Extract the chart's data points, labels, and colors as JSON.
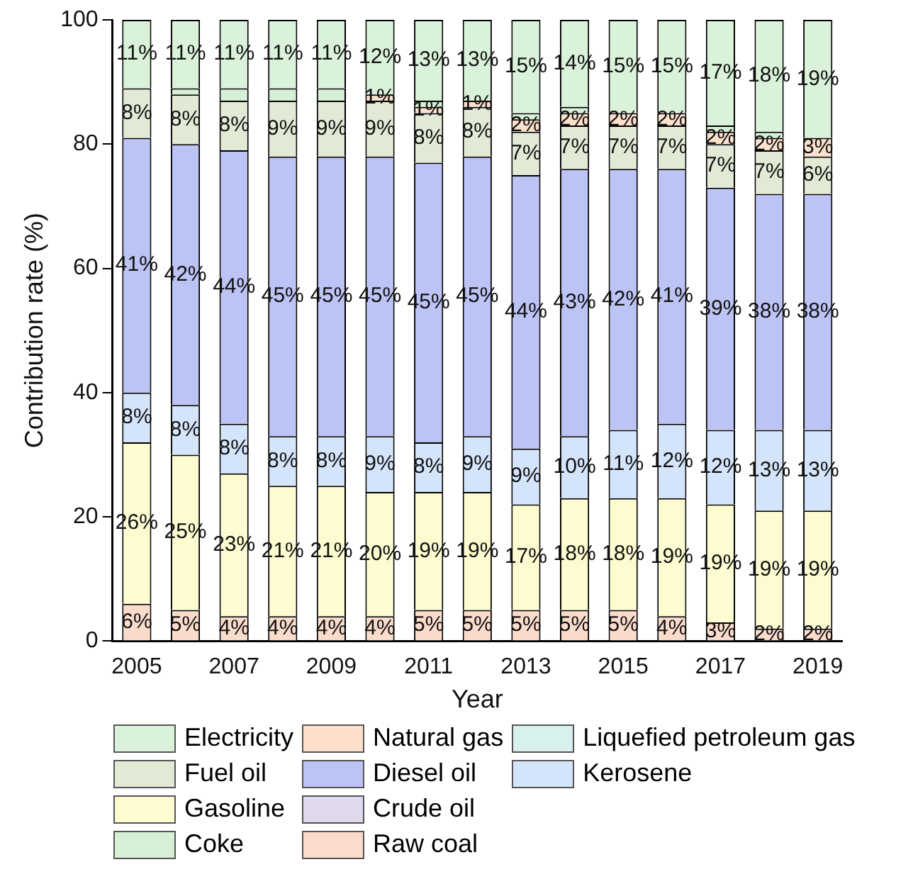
{
  "chart_data": {
    "type": "bar",
    "stacked": true,
    "xlabel": "Year",
    "ylabel": "Contribution rate (%)",
    "categories": [
      "2005",
      null,
      "2007",
      null,
      "2009",
      null,
      "2011",
      null,
      "2013",
      null,
      "2015",
      null,
      "2017",
      null,
      "2019"
    ],
    "ylim": [
      0,
      100
    ],
    "yticks": [
      0,
      20,
      40,
      60,
      80,
      100
    ],
    "grid": false,
    "legend": "bottom",
    "series": [
      {
        "name": "Raw coal",
        "color": "#fbdccc",
        "values": [
          6,
          5,
          4,
          4,
          4,
          4,
          5,
          5,
          5,
          5,
          5,
          4,
          3,
          2,
          2
        ],
        "value_labels": [
          "6%",
          "5%",
          "4%",
          "4%",
          "4%",
          "4%",
          "5%",
          "5%",
          "5%",
          "5%",
          "5%",
          "4%",
          "3%",
          "2%",
          "2%"
        ]
      },
      {
        "name": "Gasoline",
        "color": "#fdfbd0",
        "values": [
          26,
          25,
          23,
          21,
          21,
          20,
          19,
          19,
          17,
          18,
          18,
          19,
          19,
          19,
          19
        ],
        "value_labels": [
          "26%",
          "25%",
          "23%",
          "21%",
          "21%",
          "20%",
          "19%",
          "19%",
          "17%",
          "18%",
          "18%",
          "19%",
          "19%",
          "19%",
          "19%"
        ]
      },
      {
        "name": "Kerosene",
        "color": "#d4e4fa",
        "values": [
          8,
          8,
          8,
          8,
          8,
          9,
          8,
          9,
          9,
          10,
          11,
          12,
          12,
          13,
          13
        ],
        "value_labels": [
          "8%",
          "8%",
          "8%",
          "8%",
          "8%",
          "9%",
          "8%",
          "9%",
          "9%",
          "10%",
          "11%",
          "12%",
          "12%",
          "13%",
          "13%"
        ]
      },
      {
        "name": "Diesel oil",
        "color": "#bcc3f5",
        "values": [
          41,
          42,
          44,
          45,
          45,
          45,
          45,
          45,
          44,
          43,
          42,
          41,
          39,
          38,
          38
        ],
        "value_labels": [
          "41%",
          "42%",
          "44%",
          "45%",
          "45%",
          "45%",
          "45%",
          "45%",
          "44%",
          "43%",
          "42%",
          "41%",
          "39%",
          "38%",
          "38%"
        ]
      },
      {
        "name": "Fuel oil",
        "color": "#e2ead6",
        "values": [
          8,
          8,
          8,
          9,
          9,
          9,
          8,
          8,
          7,
          7,
          7,
          7,
          7,
          7,
          6
        ],
        "value_labels": [
          "8%",
          "8%",
          "8%",
          "9%",
          "9%",
          "9%",
          "8%",
          "8%",
          "7%",
          "7%",
          "7%",
          "7%",
          "7%",
          "7%",
          "6%"
        ]
      },
      {
        "name": "Natural gas",
        "color": "#fde0cc",
        "values": [
          null,
          null,
          null,
          null,
          null,
          1,
          1,
          1,
          2,
          2,
          2,
          2,
          2,
          2,
          3
        ],
        "value_labels": [
          null,
          null,
          null,
          null,
          null,
          "1%",
          "1%",
          "1%",
          "2%",
          "2%",
          "2%",
          "2%",
          "2%",
          "2%",
          "3%"
        ]
      },
      {
        "name": "Crude oil",
        "color": "#e0d8ec",
        "values": [
          null,
          null,
          null,
          null,
          null,
          null,
          null,
          null,
          null,
          null,
          null,
          null,
          null,
          null,
          null
        ]
      },
      {
        "name": "Liquefied petroleum gas",
        "color": "#d8f0ee",
        "values": [
          null,
          null,
          null,
          null,
          null,
          null,
          null,
          null,
          null,
          null,
          null,
          null,
          null,
          null,
          null
        ]
      },
      {
        "name": "Coke",
        "color": "#d5f0d5",
        "values": [
          null,
          1,
          2,
          2,
          2,
          null,
          1,
          null,
          1,
          1,
          null,
          null,
          1,
          1,
          null
        ]
      },
      {
        "name": "Electricity",
        "color": "#d9f2d9",
        "values": [
          11,
          11,
          11,
          11,
          11,
          12,
          13,
          13,
          15,
          14,
          15,
          15,
          17,
          18,
          19
        ],
        "value_labels": [
          "11%",
          "11%",
          "11%",
          "11%",
          "11%",
          "12%",
          "13%",
          "13%",
          "15%",
          "14%",
          "15%",
          "15%",
          "17%",
          "18%",
          "19%"
        ]
      }
    ]
  }
}
